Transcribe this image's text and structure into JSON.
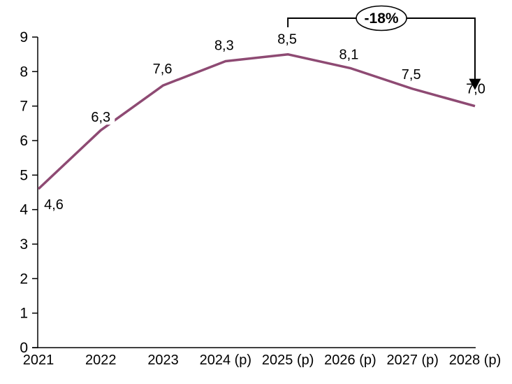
{
  "chart_data": {
    "type": "line",
    "categories": [
      "2021",
      "2022",
      "2023",
      "2024 (p)",
      "2025 (p)",
      "2026 (p)",
      "2027 (p)",
      "2028 (p)"
    ],
    "values": [
      4.6,
      6.3,
      7.6,
      8.3,
      8.5,
      8.1,
      7.5,
      7.0
    ],
    "data_labels": [
      "4,6",
      "6,3",
      "7,6",
      "8,3",
      "8,5",
      "8,1",
      "7,5",
      "7,0"
    ],
    "title": "",
    "xlabel": "",
    "ylabel": "",
    "ylim": [
      0,
      9
    ],
    "yticks": [
      0,
      1,
      2,
      3,
      4,
      5,
      6,
      7,
      8,
      9
    ],
    "grid": false,
    "legend": false,
    "line_color": "#8E4A73",
    "axis_color": "#000000",
    "label_color": "#000000",
    "annotation": {
      "label": "-18%",
      "from_category": "2025 (p)",
      "to_category": "2028 (p)",
      "shape": "ellipse",
      "ellipse_fill": "#ffffff",
      "ellipse_stroke": "#000000"
    }
  }
}
